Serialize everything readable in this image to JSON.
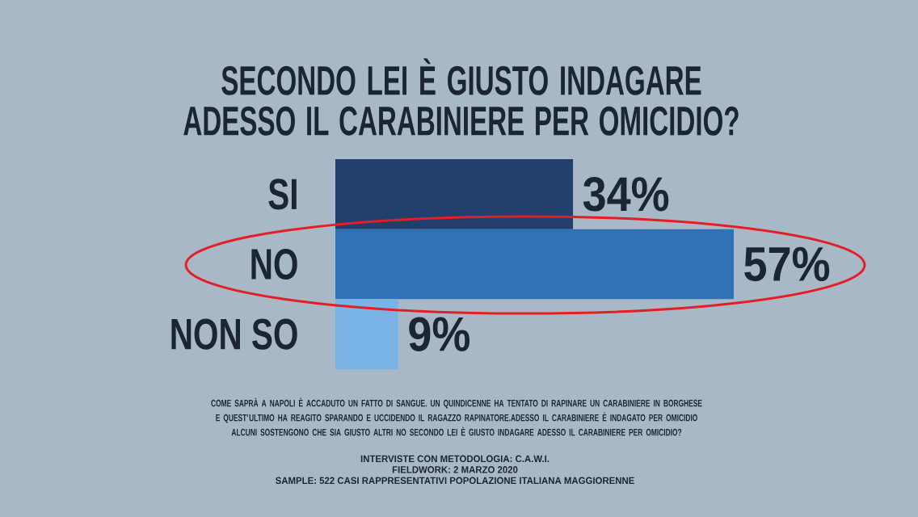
{
  "chart_data": {
    "type": "bar",
    "orientation": "horizontal",
    "title": "SECONDO LEI È GIUSTO INDAGARE ADESSO IL CARABINIERE PER OMICIDIO?",
    "categories": [
      "SI",
      "NO",
      "NON SO"
    ],
    "values": [
      34,
      57,
      9
    ],
    "colors": [
      "#213e6d",
      "#2f72b6",
      "#7ab3e6"
    ],
    "value_labels": [
      "34%",
      "57%",
      "9%"
    ],
    "annotations": [
      "COME SAPRÀ A NAPOLI È ACCADUTO UN FATTO DI SANGUE. UN QUINDICENNE HA TENTATO DI RAPINARE UN CARABINIERE IN BORGHESE E QUEST'ULTIMO HA REAGITO SPARANDO E UCCIDENDO IL RAGAZZO RAPINATORE.ADESSO IL CARABINIERE È INDAGATO PER OMICIDIO ALCUNI SOSTENGONO CHE SIA GIUSTO ALTRI NO SECONDO LEI È GIUSTO INDAGARE ADESSO IL CARABINIERE PER OMICIDIO?",
      "INTERVISTE CON METODOLOGIA: C.A.W.I.",
      "FIELDWORK: 2 MARZO 2020",
      "SAMPLE: 522 CASI RAPPRESENTATIVI POPOLAZIONE ITALIANA MAGGIORENNE"
    ]
  }
}
